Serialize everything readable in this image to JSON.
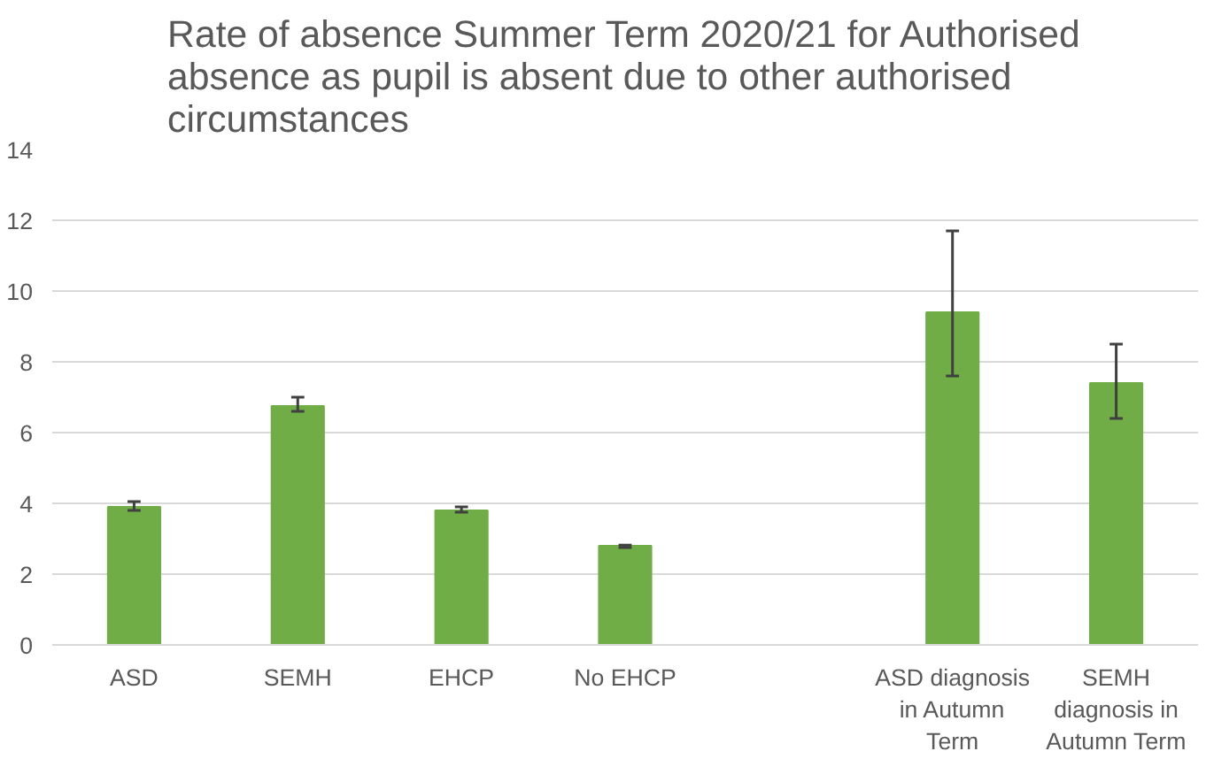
{
  "chart_data": {
    "type": "bar",
    "title": "Rate of absence Summer Term 2020/21 for Authorised absence as pupil is absent due to other authorised circumstances",
    "categories": [
      "ASD",
      "SEMH",
      "EHCP",
      "No EHCP",
      null,
      "ASD diagnosis in Autumn Term",
      "SEMH diagnosis in Autumn Term"
    ],
    "values": [
      3.9,
      6.75,
      3.8,
      2.8,
      null,
      9.4,
      7.4
    ],
    "errors": [
      [
        3.8,
        4.05
      ],
      [
        6.6,
        7.0
      ],
      [
        3.75,
        3.9
      ],
      [
        2.75,
        2.82
      ],
      null,
      [
        7.6,
        11.7
      ],
      [
        6.4,
        8.5
      ]
    ],
    "color": "#70ad47",
    "ylim": [
      0,
      14
    ],
    "yticks": [
      0,
      2,
      4,
      6,
      8,
      10,
      12,
      14
    ],
    "grid": "y"
  }
}
